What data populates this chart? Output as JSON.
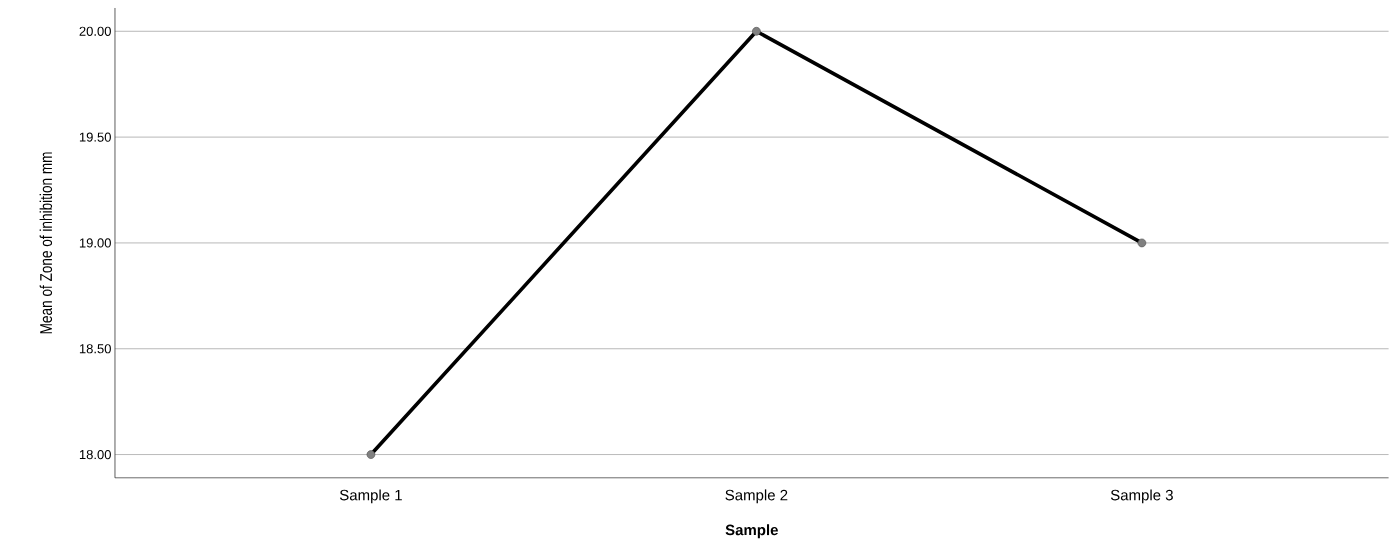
{
  "chart_data": {
    "type": "line",
    "xlabel": "Sample",
    "ylabel": "Mean of Zone of inhibition mm",
    "categories": [
      "Sample 1",
      "Sample 2",
      "Sample 3"
    ],
    "series": [
      {
        "color": "#000000",
        "values": [
          18,
          20,
          19
        ]
      }
    ],
    "ylim": [
      17.89,
      20.11
    ],
    "yticks": [
      {
        "value": 18,
        "label": "18.00"
      },
      {
        "value": 18.5,
        "label": "18.50"
      },
      {
        "value": 19,
        "label": "19.00"
      },
      {
        "value": 19.5,
        "label": "19.50"
      },
      {
        "value": 20,
        "label": "20.00"
      }
    ],
    "grid": "y",
    "marker": "circle",
    "line_style": "solid"
  }
}
